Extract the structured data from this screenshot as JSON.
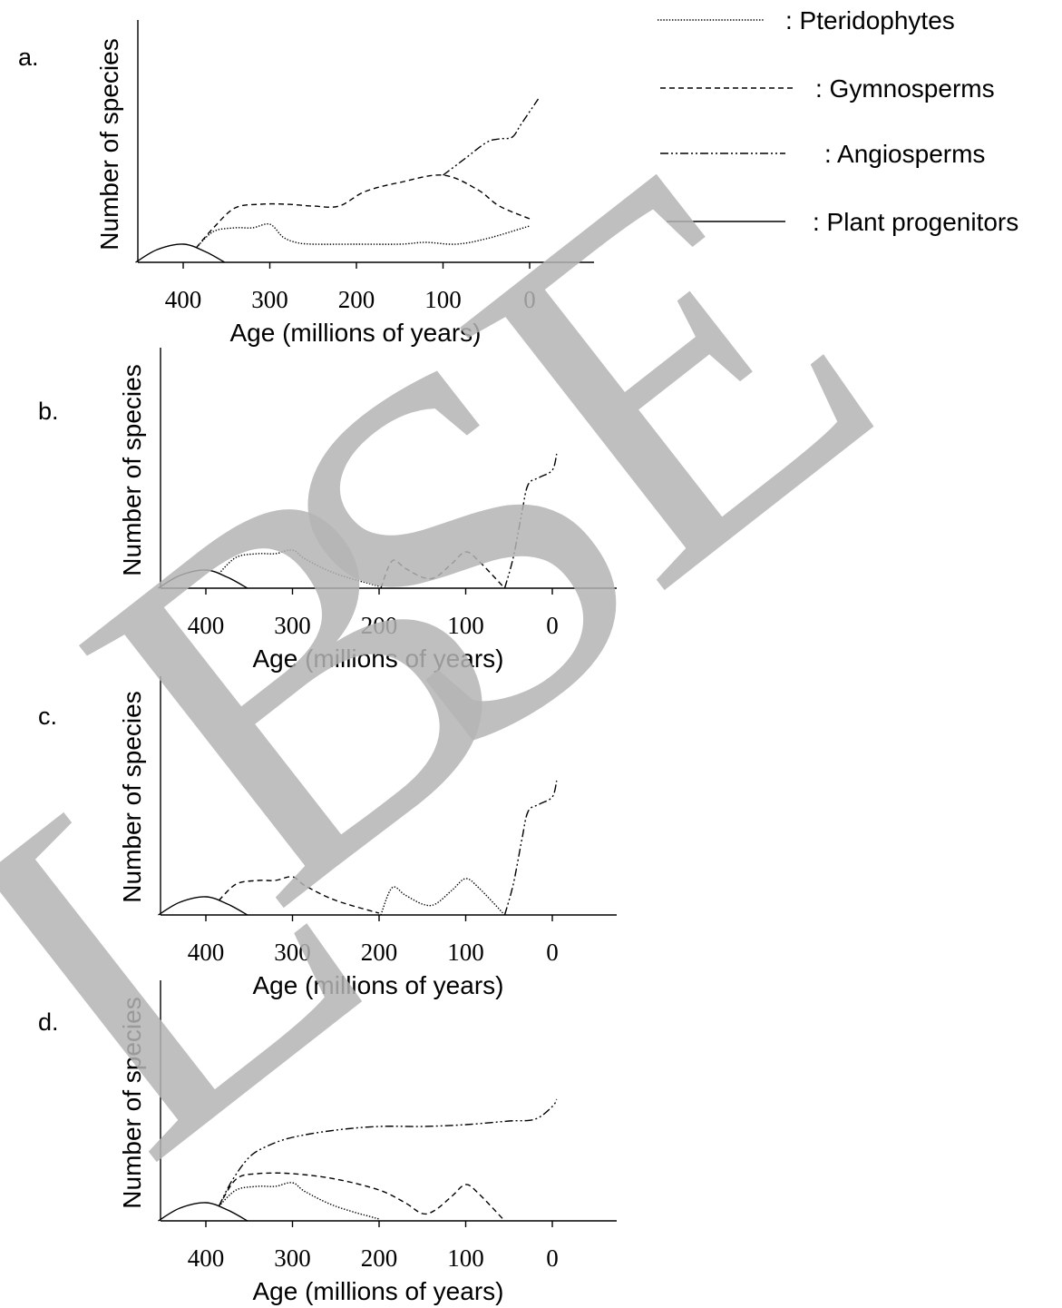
{
  "legend": [
    {
      "label": ": Pteridophytes",
      "style": "dotted"
    },
    {
      "label": ": Gymnosperms",
      "style": "dashed"
    },
    {
      "label": ": Angiosperms",
      "style": "dashdot"
    },
    {
      "label": ": Plant progenitors",
      "style": "solid"
    }
  ],
  "watermark": "LBSE",
  "chart_data": [
    {
      "type": "line",
      "panel": "a.",
      "ylabel": "Number of species",
      "xlabel": "Age (millions of years)",
      "xticks": [
        "400",
        "300",
        "200",
        "100",
        "0"
      ],
      "xlim": [
        455,
        -75
      ],
      "ylim": [
        0,
        100
      ],
      "series": [
        {
          "style": "solid",
          "points": [
            [
              455,
              0
            ],
            [
              430,
              7
            ],
            [
              400,
              10
            ],
            [
              375,
              6
            ],
            [
              352,
              0
            ]
          ]
        },
        {
          "style": "dotted",
          "points": [
            [
              385,
              8
            ],
            [
              365,
              17
            ],
            [
              340,
              19
            ],
            [
              320,
              19
            ],
            [
              300,
              21
            ],
            [
              285,
              14
            ],
            [
              270,
              11
            ],
            [
              250,
              10
            ],
            [
              200,
              10
            ],
            [
              150,
              10
            ],
            [
              120,
              11
            ],
            [
              85,
              10
            ],
            [
              50,
              13
            ],
            [
              0,
              20
            ]
          ]
        },
        {
          "style": "dashed",
          "points": [
            [
              385,
              8
            ],
            [
              365,
              19
            ],
            [
              340,
              30
            ],
            [
              310,
              32
            ],
            [
              280,
              32
            ],
            [
              250,
              31
            ],
            [
              220,
              31
            ],
            [
              190,
              39
            ],
            [
              150,
              44
            ],
            [
              100,
              48
            ],
            [
              60,
              40
            ],
            [
              35,
              31
            ],
            [
              0,
              24
            ]
          ]
        },
        {
          "style": "dashdot",
          "points": [
            [
              100,
              48
            ],
            [
              75,
              57
            ],
            [
              50,
              66
            ],
            [
              35,
              68
            ],
            [
              20,
              69
            ],
            [
              10,
              76
            ],
            [
              -10,
              90
            ]
          ]
        }
      ]
    },
    {
      "type": "line",
      "panel": "b.",
      "ylabel": "Number of species",
      "xlabel": "Age (millions of years)",
      "xticks": [
        "400",
        "300",
        "200",
        "100",
        "0"
      ],
      "xlim": [
        455,
        -75
      ],
      "ylim": [
        0,
        100
      ],
      "series": [
        {
          "style": "solid",
          "points": [
            [
              455,
              0
            ],
            [
              430,
              7
            ],
            [
              400,
              10
            ],
            [
              375,
              6
            ],
            [
              352,
              0
            ]
          ]
        },
        {
          "style": "dotted",
          "points": [
            [
              385,
              8
            ],
            [
              365,
              17
            ],
            [
              340,
              19
            ],
            [
              320,
              19
            ],
            [
              300,
              21
            ],
            [
              285,
              16
            ],
            [
              250,
              8
            ],
            [
              200,
              1
            ]
          ]
        },
        {
          "style": "dashed",
          "points": [
            [
              198,
              0
            ],
            [
              185,
              15
            ],
            [
              170,
              11
            ],
            [
              150,
              6
            ],
            [
              135,
              6
            ],
            [
              115,
              14
            ],
            [
              100,
              20
            ],
            [
              85,
              15
            ],
            [
              55,
              0
            ]
          ]
        },
        {
          "style": "dashdot",
          "points": [
            [
              55,
              0
            ],
            [
              45,
              17
            ],
            [
              35,
              42
            ],
            [
              28,
              57
            ],
            [
              15,
              61
            ],
            [
              0,
              65
            ],
            [
              -5,
              74
            ]
          ]
        }
      ]
    },
    {
      "type": "line",
      "panel": "c.",
      "ylabel": "Number of species",
      "xlabel": "Age (millions of years)",
      "xticks": [
        "400",
        "300",
        "200",
        "100",
        "0"
      ],
      "xlim": [
        455,
        -75
      ],
      "ylim": [
        0,
        100
      ],
      "series": [
        {
          "style": "solid",
          "points": [
            [
              455,
              0
            ],
            [
              430,
              7
            ],
            [
              400,
              10
            ],
            [
              375,
              6
            ],
            [
              352,
              0
            ]
          ]
        },
        {
          "style": "dashed",
          "points": [
            [
              385,
              8
            ],
            [
              365,
              17
            ],
            [
              340,
              19
            ],
            [
              320,
              19
            ],
            [
              300,
              21
            ],
            [
              285,
              16
            ],
            [
              250,
              8
            ],
            [
              200,
              1
            ]
          ]
        },
        {
          "style": "dotted",
          "points": [
            [
              198,
              0
            ],
            [
              185,
              15
            ],
            [
              170,
              11
            ],
            [
              150,
              6
            ],
            [
              135,
              6
            ],
            [
              115,
              14
            ],
            [
              100,
              20
            ],
            [
              85,
              15
            ],
            [
              55,
              0
            ]
          ]
        },
        {
          "style": "dashdot",
          "points": [
            [
              55,
              0
            ],
            [
              45,
              17
            ],
            [
              35,
              42
            ],
            [
              28,
              57
            ],
            [
              15,
              61
            ],
            [
              0,
              65
            ],
            [
              -5,
              74
            ]
          ]
        }
      ]
    },
    {
      "type": "line",
      "panel": "d.",
      "ylabel": "Number of species",
      "xlabel": "Age (millions of years)",
      "xticks": [
        "400",
        "300",
        "200",
        "100",
        "0"
      ],
      "xlim": [
        455,
        -75
      ],
      "ylim": [
        0,
        100
      ],
      "series": [
        {
          "style": "solid",
          "points": [
            [
              455,
              0
            ],
            [
              430,
              7
            ],
            [
              400,
              10
            ],
            [
              375,
              6
            ],
            [
              352,
              0
            ]
          ]
        },
        {
          "style": "dotted",
          "points": [
            [
              385,
              8
            ],
            [
              365,
              17
            ],
            [
              340,
              19
            ],
            [
              320,
              19
            ],
            [
              300,
              21
            ],
            [
              285,
              16
            ],
            [
              250,
              8
            ],
            [
              200,
              1
            ]
          ]
        },
        {
          "style": "dashed",
          "points": [
            [
              385,
              8
            ],
            [
              365,
              23
            ],
            [
              340,
              26
            ],
            [
              300,
              26
            ],
            [
              250,
              23
            ],
            [
              200,
              17
            ],
            [
              170,
              10
            ],
            [
              150,
              4
            ],
            [
              135,
              6
            ],
            [
              115,
              14
            ],
            [
              100,
              20
            ],
            [
              85,
              15
            ],
            [
              55,
              0
            ]
          ]
        },
        {
          "style": "dashdot",
          "points": [
            [
              385,
              8
            ],
            [
              370,
              22
            ],
            [
              350,
              35
            ],
            [
              330,
              41
            ],
            [
              300,
              46
            ],
            [
              250,
              50
            ],
            [
              200,
              52
            ],
            [
              150,
              52
            ],
            [
              100,
              53
            ],
            [
              50,
              55
            ],
            [
              20,
              56
            ],
            [
              0,
              63
            ],
            [
              -5,
              67
            ]
          ]
        }
      ]
    }
  ]
}
